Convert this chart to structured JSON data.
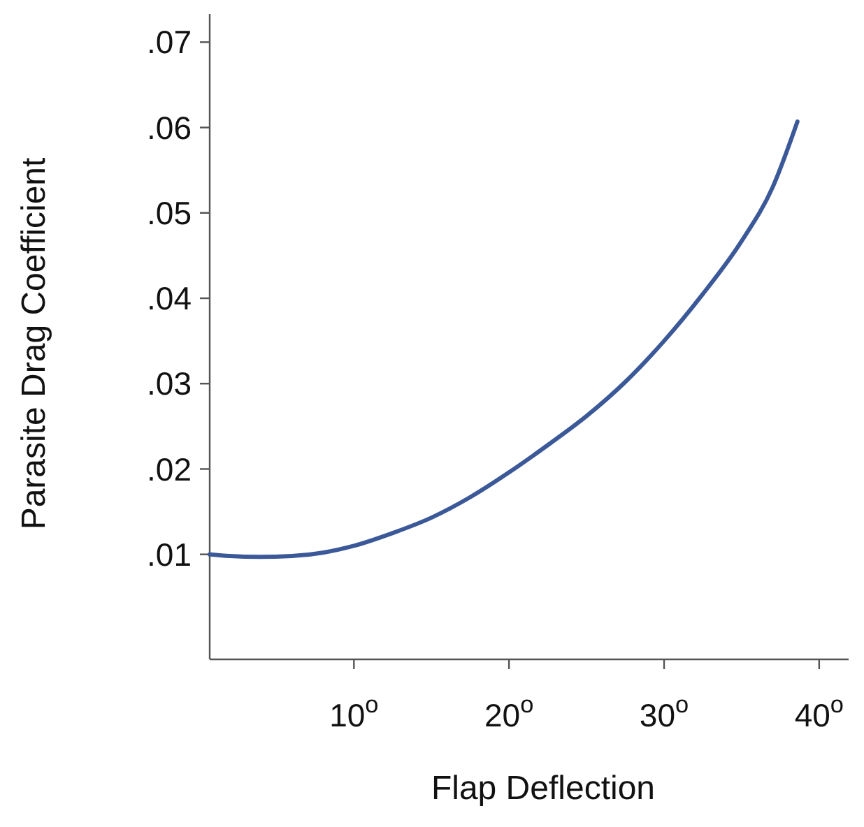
{
  "chart_data": {
    "type": "line",
    "xlabel": "Flap Deflection",
    "ylabel": "Parasite Drag Coefficient",
    "series": [
      {
        "color": "#3b5998",
        "x": [
          0.7,
          2,
          3.9,
          6,
          8,
          10,
          12.5,
          15,
          17.5,
          20,
          22.5,
          25,
          27.5,
          30,
          32.5,
          35,
          37,
          38.6
        ],
        "values": [
          0.01,
          0.0098,
          0.0097,
          0.0098,
          0.0102,
          0.011,
          0.0125,
          0.0143,
          0.0167,
          0.0196,
          0.0228,
          0.0262,
          0.0302,
          0.035,
          0.0405,
          0.0467,
          0.053,
          0.0607
        ]
      }
    ],
    "xlim": [
      0.7,
      41.9
    ],
    "ylim": [
      -0.0023,
      0.0733
    ],
    "xticks": [
      {
        "value": 10,
        "label": "10$^{o}$"
      },
      {
        "value": 20,
        "label": "20$^{o}$"
      },
      {
        "value": 30,
        "label": "30$^{o}$"
      },
      {
        "value": 40,
        "label": "40$^{o}$"
      }
    ],
    "yticks": [
      {
        "value": 0.01,
        "label": ".01"
      },
      {
        "value": 0.02,
        "label": ".02"
      },
      {
        "value": 0.03,
        "label": ".03"
      },
      {
        "value": 0.04,
        "label": ".04"
      },
      {
        "value": 0.05,
        "label": ".05"
      },
      {
        "value": 0.06,
        "label": ".06"
      },
      {
        "value": 0.07,
        "label": ".07"
      }
    ],
    "grid": false,
    "marker": "none",
    "line_style": "solid"
  }
}
